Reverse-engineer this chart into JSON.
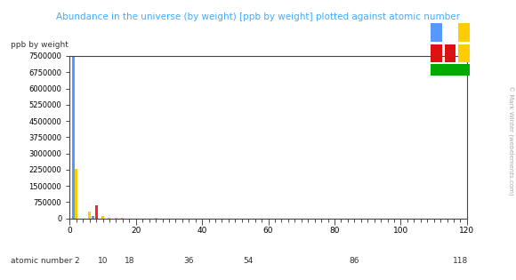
{
  "title": "Abundance in the universe (by weight) [ppb by weight] plotted against atomic number",
  "ylabel": "ppb by weight",
  "xlabel": "atomic number",
  "title_color": "#44aaff",
  "ylabel_color": "#333333",
  "xlabel_color": "#333333",
  "background_color": "#ffffff",
  "copyright_text": "© Mark Winter (webelements.com)",
  "yticks": [
    0,
    750000,
    1500000,
    2250000,
    3000000,
    3750000,
    4500000,
    5250000,
    6000000,
    6750000,
    7500000
  ],
  "xtick_minor_positions": [
    0,
    2,
    4,
    6,
    8,
    10,
    12,
    14,
    16,
    18,
    20,
    22,
    24,
    26,
    28,
    30,
    32,
    34,
    36,
    38,
    40,
    42,
    44,
    46,
    48,
    50,
    52,
    54,
    56,
    58,
    60,
    62,
    64,
    66,
    68,
    70,
    72,
    74,
    76,
    78,
    80,
    82,
    84,
    86,
    88,
    90,
    92,
    94,
    96,
    98,
    100,
    102,
    104,
    106,
    108,
    110,
    112,
    114,
    116,
    118,
    120
  ],
  "xtick_top_labels": [
    0,
    20,
    40,
    60,
    80,
    100,
    120
  ],
  "xtick_top_positions": [
    0,
    20,
    40,
    60,
    80,
    100,
    120
  ],
  "xtick_bottom_labels": [
    2,
    10,
    18,
    36,
    54,
    86,
    118
  ],
  "xtick_bottom_positions": [
    2,
    10,
    18,
    36,
    54,
    86,
    118
  ],
  "xlim": [
    0,
    120
  ],
  "ylim": [
    0,
    7500000
  ],
  "elements": {
    "1": {
      "value": 7500000,
      "color": "#5599ff"
    },
    "2": {
      "value": 2300000,
      "color": "#ffcc00"
    },
    "3": {
      "value": 6,
      "color": "#ff2222"
    },
    "4": {
      "value": 0.1,
      "color": "#ffcc00"
    },
    "5": {
      "value": 1000,
      "color": "#ffcc00"
    },
    "6": {
      "value": 300000,
      "color": "#ffcc00"
    },
    "7": {
      "value": 100000,
      "color": "#5599ff"
    },
    "8": {
      "value": 600000,
      "color": "#ff2222"
    },
    "9": {
      "value": 400,
      "color": "#ffff00"
    },
    "10": {
      "value": 130000,
      "color": "#ffcc00"
    },
    "11": {
      "value": 2000,
      "color": "#ff8800"
    },
    "12": {
      "value": 35000,
      "color": "#ffcc00"
    },
    "13": {
      "value": 3500,
      "color": "#bbbbbb"
    },
    "14": {
      "value": 35000,
      "color": "#ffcc00"
    },
    "15": {
      "value": 4000,
      "color": "#ffcc00"
    },
    "16": {
      "value": 15000,
      "color": "#ffcc00"
    },
    "17": {
      "value": 1000,
      "color": "#00bb00"
    },
    "18": {
      "value": 2000,
      "color": "#ffcc00"
    },
    "19": {
      "value": 1000,
      "color": "#ff8800"
    },
    "20": {
      "value": 2200,
      "color": "#ffcc00"
    },
    "21": {
      "value": 4,
      "color": "#cccccc"
    },
    "22": {
      "value": 200,
      "color": "#cccccc"
    },
    "23": {
      "value": 4,
      "color": "#cccccc"
    },
    "24": {
      "value": 550,
      "color": "#cccccc"
    },
    "25": {
      "value": 290,
      "color": "#cccccc"
    },
    "26": {
      "value": 11000,
      "color": "#cccccc"
    },
    "27": {
      "value": 210,
      "color": "#cccccc"
    },
    "28": {
      "value": 600,
      "color": "#cccccc"
    },
    "29": {
      "value": 60,
      "color": "#cccccc"
    },
    "30": {
      "value": 40,
      "color": "#cccccc"
    },
    "31": {
      "value": 2,
      "color": "#cccccc"
    },
    "32": {
      "value": 115,
      "color": "#cccccc"
    },
    "33": {
      "value": 6.6,
      "color": "#cccccc"
    },
    "34": {
      "value": 45,
      "color": "#00bb00"
    },
    "35": {
      "value": 7,
      "color": "#00bb00"
    },
    "36": {
      "value": 45,
      "color": "#ffcc00"
    },
    "37": {
      "value": 7,
      "color": "#ff8800"
    },
    "38": {
      "value": 40,
      "color": "#ffcc00"
    },
    "39": {
      "value": 7,
      "color": "#cccccc"
    },
    "40": {
      "value": 40,
      "color": "#cccccc"
    },
    "41": {
      "value": 2,
      "color": "#cccccc"
    },
    "42": {
      "value": 5,
      "color": "#cccccc"
    },
    "44": {
      "value": 4,
      "color": "#cccccc"
    },
    "45": {
      "value": 1,
      "color": "#cccccc"
    },
    "46": {
      "value": 2,
      "color": "#cccccc"
    },
    "47": {
      "value": 1,
      "color": "#cccccc"
    },
    "48": {
      "value": 2,
      "color": "#cccccc"
    },
    "49": {
      "value": 0.3,
      "color": "#cccccc"
    },
    "50": {
      "value": 4,
      "color": "#cccccc"
    },
    "51": {
      "value": 0.3,
      "color": "#cccccc"
    },
    "52": {
      "value": 9,
      "color": "#cccccc"
    },
    "53": {
      "value": 1,
      "color": "#00bb00"
    },
    "54": {
      "value": 8,
      "color": "#ffcc00"
    },
    "55": {
      "value": 0.8,
      "color": "#ff8800"
    },
    "56": {
      "value": 4,
      "color": "#ffcc00"
    },
    "57": {
      "value": 0.5,
      "color": "#cccccc"
    },
    "58": {
      "value": 1,
      "color": "#cccccc"
    },
    "59": {
      "value": 0.2,
      "color": "#cccccc"
    },
    "60": {
      "value": 0.6,
      "color": "#cccccc"
    },
    "62": {
      "value": 0.2,
      "color": "#cccccc"
    },
    "63": {
      "value": 0.08,
      "color": "#cccccc"
    },
    "64": {
      "value": 0.2,
      "color": "#cccccc"
    },
    "65": {
      "value": 0.05,
      "color": "#cccccc"
    },
    "66": {
      "value": 0.2,
      "color": "#cccccc"
    },
    "67": {
      "value": 0.05,
      "color": "#cccccc"
    },
    "68": {
      "value": 0.1,
      "color": "#cccccc"
    },
    "70": {
      "value": 0.1,
      "color": "#cccccc"
    },
    "72": {
      "value": 0.1,
      "color": "#cccccc"
    },
    "74": {
      "value": 0.1,
      "color": "#cccccc"
    },
    "76": {
      "value": 0.3,
      "color": "#cccccc"
    },
    "77": {
      "value": 0.2,
      "color": "#cccccc"
    },
    "78": {
      "value": 0.5,
      "color": "#cccccc"
    },
    "79": {
      "value": 0.2,
      "color": "#cccccc"
    },
    "80": {
      "value": 0.5,
      "color": "#cccccc"
    },
    "81": {
      "value": 0.2,
      "color": "#cccccc"
    },
    "82": {
      "value": 1,
      "color": "#cccccc"
    },
    "83": {
      "value": 0.1,
      "color": "#cccccc"
    },
    "90": {
      "value": 0.03,
      "color": "#cccccc"
    },
    "92": {
      "value": 0.02,
      "color": "#cccccc"
    }
  },
  "legend": {
    "row1": [
      {
        "x": 0.0,
        "color": "#5599ff"
      },
      {
        "x": 2.0,
        "color": "#ffcc00"
      }
    ],
    "row2": [
      {
        "x": 0.0,
        "color": "#dd1111"
      },
      {
        "x": 1.0,
        "color": "#dd1111"
      },
      {
        "x": 2.0,
        "color": "#ffcc00"
      }
    ],
    "row3": [
      {
        "x": 0.0,
        "color": "#00aa00"
      },
      {
        "x": 1.0,
        "color": "#00aa00"
      },
      {
        "x": 2.0,
        "color": "#00aa00"
      }
    ]
  }
}
